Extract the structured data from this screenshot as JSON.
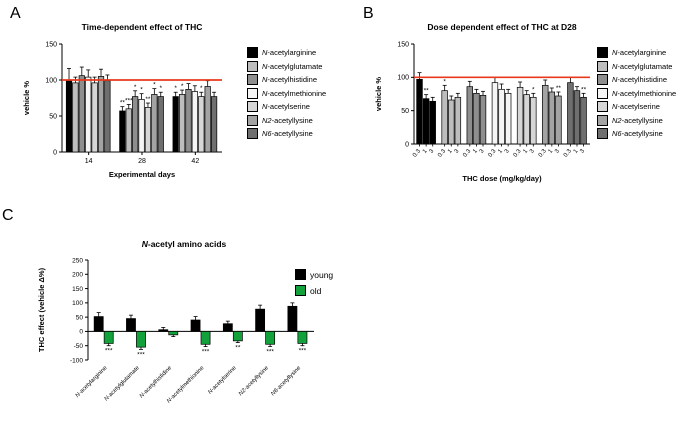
{
  "figure": {
    "panels": [
      {
        "id": "A",
        "label": "A"
      },
      {
        "id": "B",
        "label": "B"
      },
      {
        "id": "C",
        "label": "C"
      }
    ]
  },
  "chart_data": [
    {
      "panel": "A",
      "type": "bar",
      "title": "Time-dependent effect of THC",
      "xlabel": "Experimental days",
      "ylabel": "vehicle %",
      "ylim": [
        0,
        150
      ],
      "yticks": [
        0,
        50,
        100,
        150
      ],
      "reference_line": {
        "value": 100,
        "color": "#e8391d"
      },
      "categories": [
        "14",
        "28",
        "42"
      ],
      "legend_position": "right",
      "series": [
        {
          "name": "N-acetylarginine",
          "color": "#000000",
          "values": [
            100,
            57,
            77
          ],
          "errors": [
            16,
            6,
            6
          ],
          "sig": [
            "",
            "**",
            "*"
          ]
        },
        {
          "name": "N-acetylglutamate",
          "color": "#bdbdbd",
          "values": [
            96,
            60,
            80
          ],
          "errors": [
            8,
            6,
            6
          ],
          "sig": [
            "",
            "***",
            "*"
          ]
        },
        {
          "name": "N-acetylhistidine",
          "color": "#8e8e8e",
          "values": [
            106,
            77,
            87
          ],
          "errors": [
            12,
            8,
            8
          ],
          "sig": [
            "",
            "*",
            ""
          ]
        },
        {
          "name": "N-acetylmethionine",
          "color": "#f5f5f5",
          "values": [
            104,
            73,
            84
          ],
          "errors": [
            10,
            8,
            8
          ],
          "sig": [
            "",
            "*",
            ""
          ]
        },
        {
          "name": "N-acetylserine",
          "color": "#d6d6d6",
          "values": [
            96,
            62,
            77
          ],
          "errors": [
            8,
            6,
            6
          ],
          "sig": [
            "",
            "**",
            "*"
          ]
        },
        {
          "name": "N2-acetyllysine",
          "color": "#a3a3a3",
          "values": [
            105,
            80,
            91
          ],
          "errors": [
            10,
            8,
            8
          ],
          "sig": [
            "",
            "*",
            ""
          ]
        },
        {
          "name": "N6-acetyllysine",
          "color": "#6f6f6f",
          "values": [
            99,
            77,
            77
          ],
          "errors": [
            8,
            6,
            6
          ],
          "sig": [
            "",
            "*",
            ""
          ]
        }
      ]
    },
    {
      "panel": "B",
      "type": "bar",
      "title": "Dose dependent effect of THC at D28",
      "xlabel": "THC dose (mg/kg/day)",
      "ylabel": "vehicle %",
      "ylim": [
        0,
        150
      ],
      "yticks": [
        0,
        50,
        100,
        150
      ],
      "reference_line": {
        "value": 100,
        "color": "#e8391d"
      },
      "dose_labels": [
        "0.3",
        "1",
        "3"
      ],
      "legend_position": "right",
      "groups": [
        {
          "name": "N-acetylarginine",
          "color": "#000000",
          "values": [
            97,
            68,
            64
          ],
          "errors": [
            10,
            6,
            6
          ],
          "sig": [
            "",
            "**",
            ""
          ]
        },
        {
          "name": "N-acetylglutamate",
          "color": "#bdbdbd",
          "values": [
            80,
            66,
            70
          ],
          "errors": [
            8,
            6,
            6
          ],
          "sig": [
            "*",
            "",
            ""
          ]
        },
        {
          "name": "N-acetylhistidine",
          "color": "#8e8e8e",
          "values": [
            86,
            76,
            73
          ],
          "errors": [
            8,
            6,
            6
          ],
          "sig": [
            "",
            "",
            ""
          ]
        },
        {
          "name": "N-acetylmethionine",
          "color": "#f5f5f5",
          "values": [
            92,
            82,
            76
          ],
          "errors": [
            8,
            8,
            6
          ],
          "sig": [
            "",
            "",
            ""
          ]
        },
        {
          "name": "N-acetylserine",
          "color": "#d6d6d6",
          "values": [
            85,
            74,
            70
          ],
          "errors": [
            8,
            6,
            6
          ],
          "sig": [
            "",
            "",
            "*"
          ]
        },
        {
          "name": "N2-acetyllysine",
          "color": "#a3a3a3",
          "values": [
            88,
            78,
            72
          ],
          "errors": [
            8,
            6,
            6
          ],
          "sig": [
            "",
            "",
            "**"
          ]
        },
        {
          "name": "N6-acetyllysine",
          "color": "#6f6f6f",
          "values": [
            92,
            80,
            70
          ],
          "errors": [
            8,
            6,
            6
          ],
          "sig": [
            "",
            "",
            "**"
          ]
        }
      ]
    },
    {
      "panel": "C",
      "type": "bar",
      "title": "N-acetyl amino acids",
      "xlabel": "",
      "ylabel": "THC effect (vehicle Δ%)",
      "ylim": [
        -100,
        250
      ],
      "yticks": [
        -100,
        -50,
        0,
        50,
        100,
        150,
        200,
        250
      ],
      "categories": [
        "N-acetylarginine",
        "N-acetylglutamate",
        "N-acetylhistidine",
        "N-acetylmethionine",
        "N-acetylserine",
        "N2-acetyllysine",
        "N6-acetyllysine"
      ],
      "legend_position": "top-right",
      "series": [
        {
          "name": "young",
          "color": "#000000",
          "values": [
            52,
            45,
            6,
            40,
            27,
            78,
            88
          ],
          "errors": [
            14,
            12,
            8,
            12,
            9,
            14,
            12
          ],
          "sig": [
            "",
            "",
            "",
            "",
            "",
            "",
            ""
          ]
        },
        {
          "name": "old",
          "color": "#12a13b",
          "values": [
            -42,
            -55,
            -12,
            -45,
            -33,
            -45,
            -42
          ],
          "errors": [
            8,
            8,
            6,
            8,
            6,
            8,
            8
          ],
          "sig": [
            "***",
            "***",
            "",
            "***",
            "**",
            "***",
            "***"
          ]
        }
      ]
    }
  ]
}
